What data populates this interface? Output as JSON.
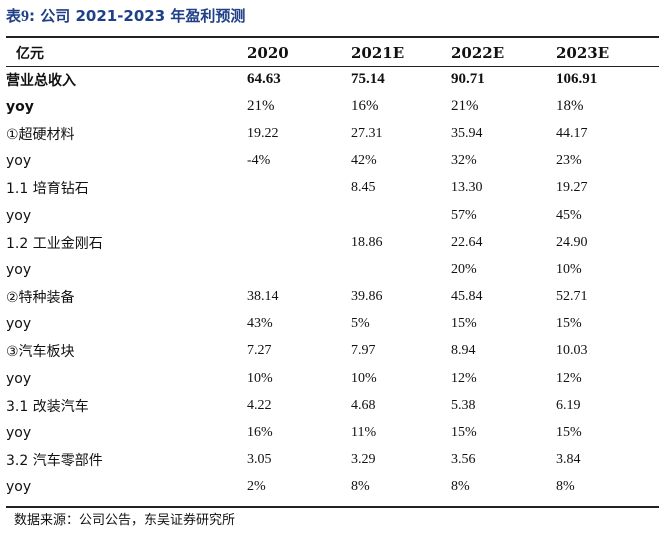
{
  "title": {
    "prefix": "表",
    "number": "9",
    "text": ":  公司 2021-2023 年盈利预测"
  },
  "table": {
    "headers": [
      "亿元",
      "2020",
      "2021E",
      "2022E",
      "2023E"
    ],
    "rows": [
      {
        "label": "营业总收入",
        "values": [
          "64.63",
          "75.14",
          "90.71",
          "106.91"
        ]
      },
      {
        "label": "yoy",
        "values": [
          "21%",
          "16%",
          "21%",
          "18%"
        ]
      },
      {
        "label": "①超硬材料",
        "values": [
          "19.22",
          "27.31",
          "35.94",
          "44.17"
        ]
      },
      {
        "label": "yoy",
        "values": [
          "-4%",
          "42%",
          "32%",
          "23%"
        ]
      },
      {
        "label": "1.1 培育钻石",
        "values": [
          "",
          "8.45",
          "13.30",
          "19.27"
        ]
      },
      {
        "label": "yoy",
        "values": [
          "",
          "",
          "57%",
          "45%"
        ]
      },
      {
        "label": "1.2 工业金刚石",
        "values": [
          "",
          "18.86",
          "22.64",
          "24.90"
        ]
      },
      {
        "label": "yoy",
        "values": [
          "",
          "",
          "20%",
          "10%"
        ]
      },
      {
        "label": "②特种装备",
        "values": [
          "38.14",
          "39.86",
          "45.84",
          "52.71"
        ]
      },
      {
        "label": "yoy",
        "values": [
          "43%",
          "5%",
          "15%",
          "15%"
        ]
      },
      {
        "label": "③汽车板块",
        "values": [
          "7.27",
          "7.97",
          "8.94",
          "10.03"
        ]
      },
      {
        "label": "yoy",
        "values": [
          "10%",
          "10%",
          "12%",
          "12%"
        ]
      },
      {
        "label": "3.1 改装汽车",
        "values": [
          "4.22",
          "4.68",
          "5.38",
          "6.19"
        ]
      },
      {
        "label": "yoy",
        "values": [
          "16%",
          "11%",
          "15%",
          "15%"
        ]
      },
      {
        "label": "3.2 汽车零部件",
        "values": [
          "3.05",
          "3.29",
          "3.56",
          "3.84"
        ]
      },
      {
        "label": "yoy",
        "values": [
          "2%",
          "8%",
          "8%",
          "8%"
        ]
      }
    ]
  },
  "source": "数据来源：公司公告，东吴证券研究所"
}
